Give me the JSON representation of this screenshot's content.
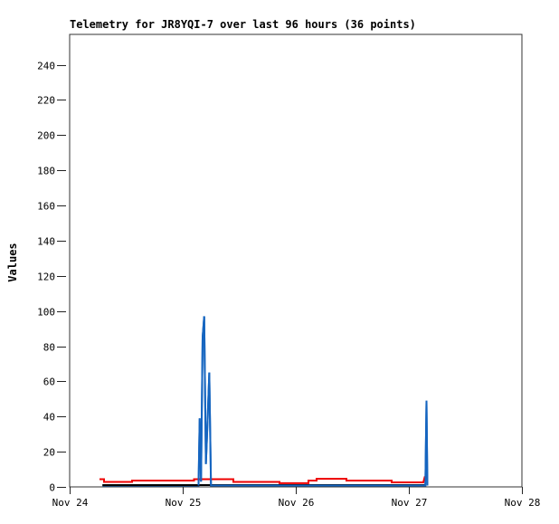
{
  "chart_data": {
    "type": "line",
    "title": "Telemetry for JR8YQI-7 over last 96 hours (36 points)",
    "ylabel": "Values",
    "xlabel": "",
    "legend": "none",
    "grid": false,
    "x_unit": "days offset from Nov 24",
    "xlim": [
      0,
      4
    ],
    "ylim": [
      0,
      257.3
    ],
    "xticks": [
      {
        "t": 0,
        "label": "Nov 24"
      },
      {
        "t": 1,
        "label": "Nov 25"
      },
      {
        "t": 2,
        "label": "Nov 26"
      },
      {
        "t": 3,
        "label": "Nov 27"
      },
      {
        "t": 4,
        "label": "Nov 28"
      }
    ],
    "yticks": [
      0,
      20,
      40,
      60,
      80,
      100,
      120,
      140,
      160,
      180,
      200,
      220,
      240
    ],
    "series": [
      {
        "name": "channel-blue",
        "color": "#1565c0",
        "width": 2,
        "points": [
          [
            0.29,
            0.8
          ],
          [
            1.14,
            0.8
          ],
          [
            1.15,
            39
          ],
          [
            1.162,
            3
          ],
          [
            1.176,
            85
          ],
          [
            1.19,
            97
          ],
          [
            1.205,
            13
          ],
          [
            1.215,
            29
          ],
          [
            1.235,
            65
          ],
          [
            1.25,
            0.8
          ],
          [
            3.146,
            0.8
          ],
          [
            3.156,
            49
          ],
          [
            3.164,
            0.8
          ]
        ]
      },
      {
        "name": "channel-black",
        "color": "#000000",
        "width": 2,
        "points": [
          [
            0.29,
            1.0
          ],
          [
            3.15,
            1.0
          ]
        ]
      },
      {
        "name": "channel-red",
        "color": "#ee0000",
        "width": 2,
        "points": [
          [
            0.264,
            4.4
          ],
          [
            0.304,
            4.4
          ],
          [
            0.304,
            2.8
          ],
          [
            0.552,
            2.8
          ],
          [
            0.552,
            3.6
          ],
          [
            1.1,
            3.6
          ],
          [
            1.1,
            4.4
          ],
          [
            1.448,
            4.4
          ],
          [
            1.448,
            2.8
          ],
          [
            1.856,
            2.8
          ],
          [
            1.856,
            2.1
          ],
          [
            2.112,
            2.1
          ],
          [
            2.112,
            3.6
          ],
          [
            2.184,
            3.6
          ],
          [
            2.184,
            4.6
          ],
          [
            2.448,
            4.6
          ],
          [
            2.448,
            3.6
          ],
          [
            2.848,
            3.6
          ],
          [
            2.848,
            2.6
          ],
          [
            3.128,
            2.6
          ],
          [
            3.14,
            5.5
          ],
          [
            3.158,
            5.5
          ]
        ]
      }
    ]
  }
}
